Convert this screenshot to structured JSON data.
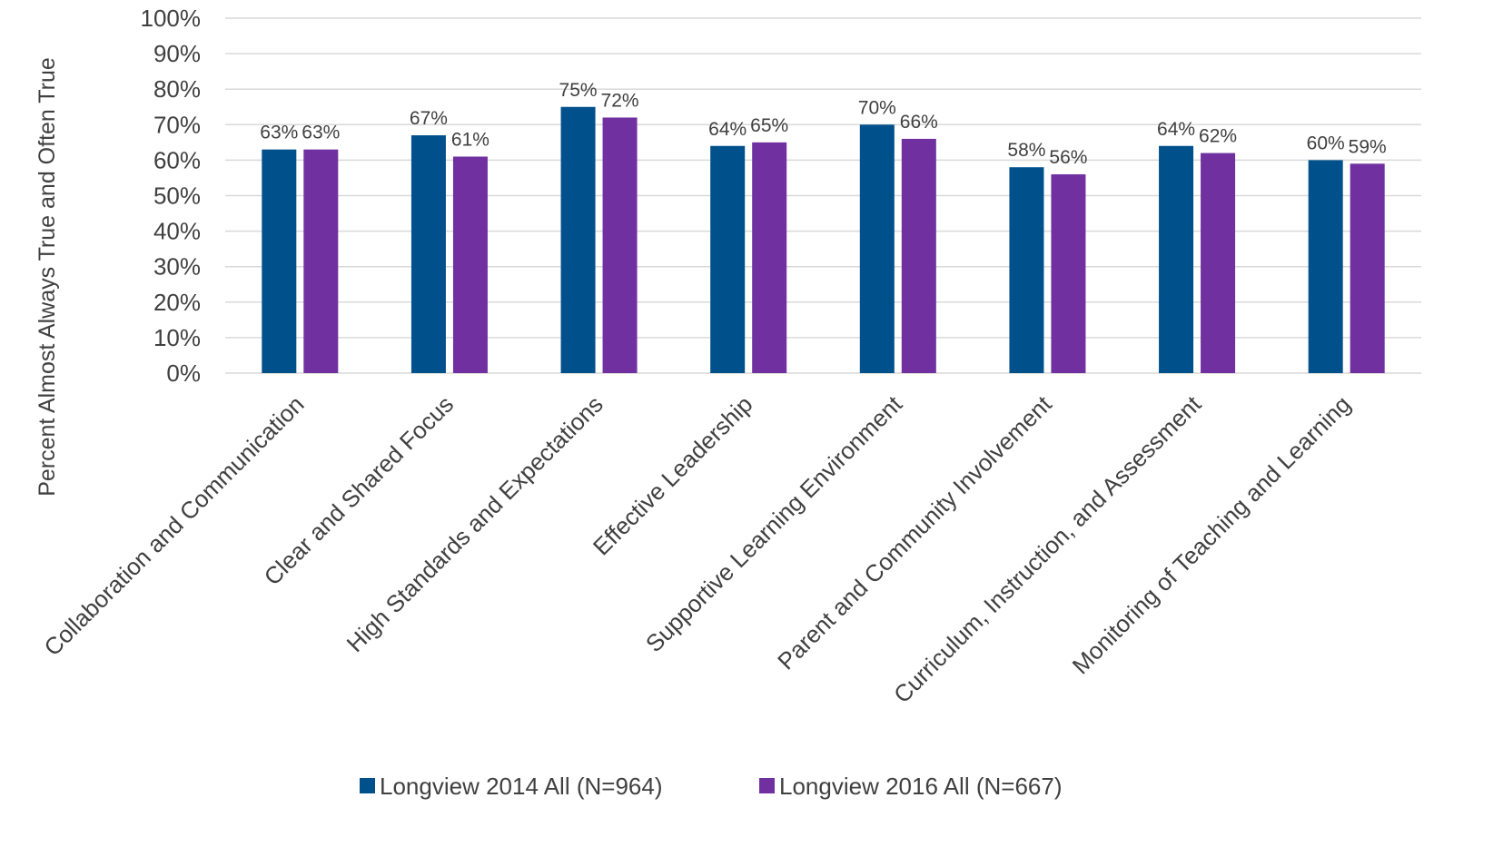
{
  "chart_data": {
    "type": "bar",
    "title": "",
    "xlabel": "",
    "ylabel": "Percent Almost Always True and Often True",
    "ylim": [
      0,
      100
    ],
    "yticks": [
      "0%",
      "10%",
      "20%",
      "30%",
      "40%",
      "50%",
      "60%",
      "70%",
      "80%",
      "90%",
      "100%"
    ],
    "grid": "horizontal",
    "legend_position": "bottom",
    "categories": [
      "Collaboration and Communication",
      "Clear and Shared Focus",
      "High Standards and Expectations",
      "Effective Leadership",
      "Supportive Learning Environment",
      "Parent and Community Involvement",
      "Curriculum, Instruction, and Assessment",
      "Monitoring of Teaching and Learning"
    ],
    "series": [
      {
        "name": "Longview 2014 All (N=964)",
        "color": "#00508c",
        "values": [
          63,
          67,
          75,
          64,
          70,
          58,
          64,
          60
        ],
        "labels": [
          "63%",
          "67%",
          "75%",
          "64%",
          "70%",
          "58%",
          "64%",
          "60%"
        ]
      },
      {
        "name": "Longview 2016 All (N=667)",
        "color": "#7030a0",
        "values": [
          63,
          61,
          72,
          65,
          66,
          56,
          62,
          59
        ],
        "labels": [
          "63%",
          "61%",
          "72%",
          "65%",
          "66%",
          "56%",
          "62%",
          "59%"
        ]
      }
    ]
  }
}
